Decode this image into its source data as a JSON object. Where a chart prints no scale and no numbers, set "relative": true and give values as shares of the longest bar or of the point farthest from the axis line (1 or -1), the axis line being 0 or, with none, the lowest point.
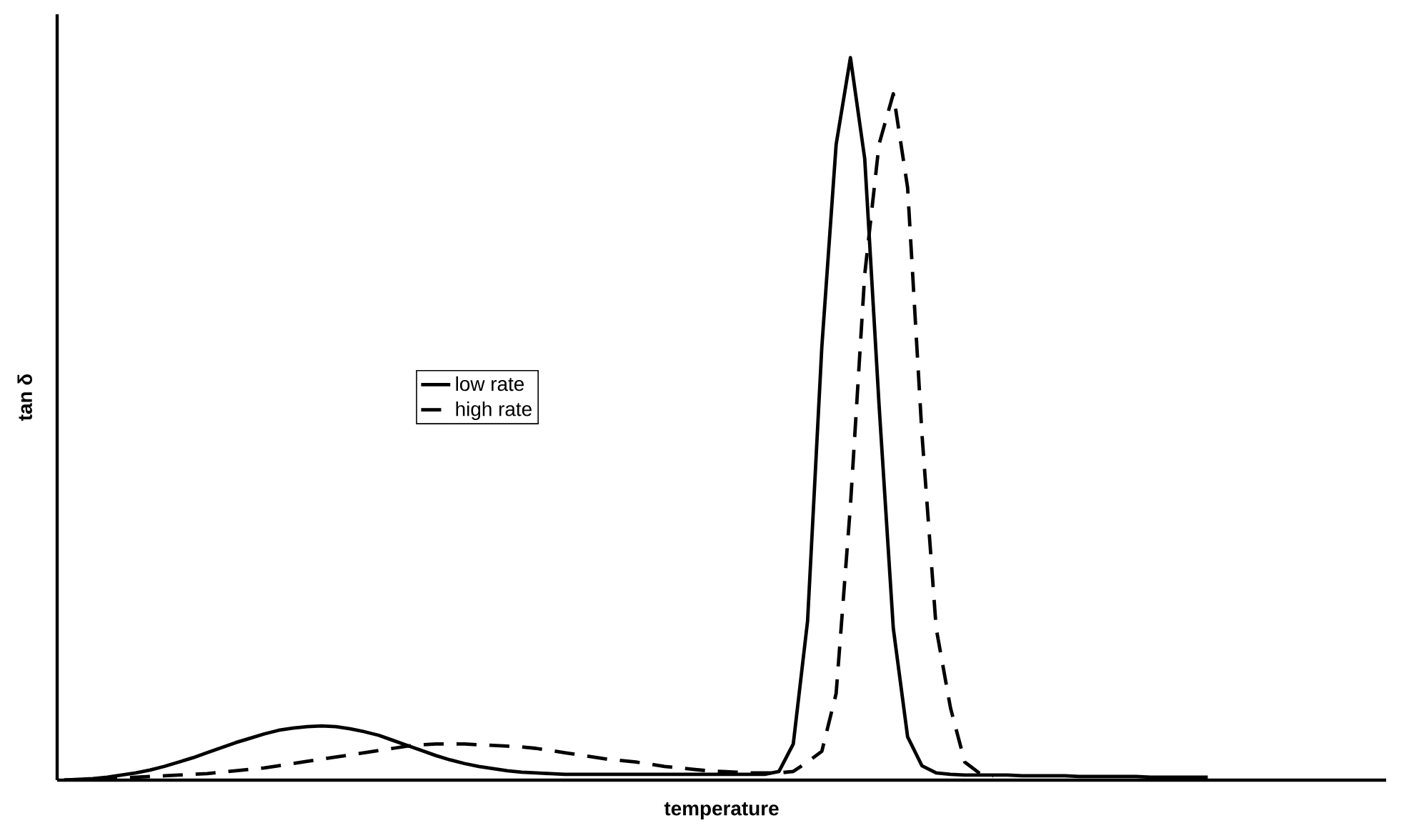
{
  "chart_data": {
    "type": "line",
    "relative": true,
    "xlabel": "temperature",
    "ylabel": "tan δ",
    "legend": "left",
    "categories": [
      null,
      null,
      null,
      null,
      null,
      null,
      null,
      null,
      null,
      null,
      null,
      null,
      null,
      null,
      null,
      null,
      null,
      null,
      null,
      null,
      null,
      null,
      null,
      null,
      null,
      null,
      null,
      null,
      null,
      null,
      null,
      null,
      null,
      null,
      null,
      null,
      null,
      null,
      null,
      null,
      null,
      null,
      null,
      null,
      null,
      null,
      null,
      null,
      null,
      null,
      null,
      null,
      null,
      null,
      null,
      null,
      null,
      null,
      null,
      null,
      null,
      null,
      null,
      null,
      null,
      null,
      null,
      null,
      null,
      null,
      null,
      null,
      null,
      null,
      null,
      null,
      null,
      null,
      null,
      null,
      null
    ],
    "series": [
      {
        "name": "low rate",
        "color": "#000000",
        "line_style": "solid",
        "values": [
          0,
          0.001,
          0.002,
          0.004,
          0.007,
          0.01,
          0.014,
          0.019,
          0.025,
          0.031,
          0.038,
          0.045,
          0.052,
          0.058,
          0.064,
          0.069,
          0.072,
          0.074,
          0.075,
          0.074,
          0.071,
          0.067,
          0.062,
          0.055,
          0.048,
          0.041,
          0.034,
          0.028,
          0.023,
          0.019,
          0.016,
          0.013,
          0.011,
          0.01,
          0.009,
          0.008,
          0.008,
          0.008,
          0.008,
          0.008,
          0.008,
          0.008,
          0.008,
          0.008,
          0.008,
          0.008,
          0.008,
          0.008,
          0.008,
          0.008,
          0.012,
          0.05,
          0.22,
          0.6,
          0.88,
          1.0,
          0.86,
          0.52,
          0.21,
          0.06,
          0.02,
          0.01,
          0.008,
          0.007,
          0.007,
          0.007,
          0.007,
          0.006,
          0.006,
          0.006,
          0.006,
          0.005,
          0.005,
          0.005,
          0.005,
          0.005,
          0.004,
          0.004,
          0.004,
          0.004,
          0.004
        ]
      },
      {
        "name": "high rate",
        "color": "#000000",
        "line_style": "dashed",
        "values": [
          0,
          0,
          0.001,
          0.002,
          0.003,
          0.004,
          0.005,
          0.006,
          0.007,
          0.008,
          0.009,
          0.011,
          0.013,
          0.015,
          0.017,
          0.02,
          0.023,
          0.026,
          0.029,
          0.032,
          0.035,
          0.038,
          0.041,
          0.044,
          0.047,
          0.049,
          0.05,
          0.05,
          0.05,
          0.049,
          0.048,
          0.047,
          0.046,
          0.044,
          0.041,
          0.038,
          0.035,
          0.032,
          0.029,
          0.027,
          0.025,
          0.022,
          0.019,
          0.017,
          0.015,
          0.013,
          0.012,
          0.011,
          0.01,
          0.01,
          0.01,
          0.012,
          0.025,
          0.04,
          0.12,
          0.38,
          0.7,
          0.88,
          0.95,
          0.82,
          0.48,
          0.21,
          0.1,
          0.025,
          0.01,
          0.006,
          null,
          null,
          null,
          null,
          null,
          null,
          null,
          null,
          null,
          null,
          null,
          null,
          null,
          null,
          null
        ]
      }
    ]
  }
}
